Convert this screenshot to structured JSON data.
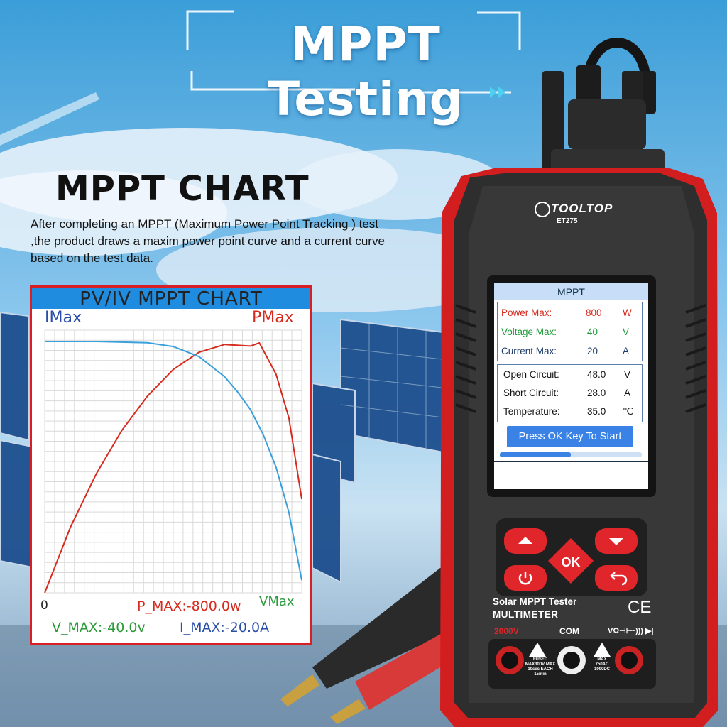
{
  "headline": "MPPT Testing",
  "section": {
    "title": "MPPT CHART",
    "description": "After completing an MPPT (Maximum Power Point Tracking ) test ,the product draws a maxim power point curve and a current curve based on the test data."
  },
  "chart_data": {
    "type": "line",
    "title": "PV/IV MPPT CHART",
    "y_label_left": "IMax",
    "y_label_right": "PMax",
    "x_label": "VMax",
    "origin_label": "0",
    "x_range": [
      0,
      40
    ],
    "series": [
      {
        "name": "",
        "color": "#d62b1e",
        "x": [
          0,
          4,
          8,
          12,
          16,
          20,
          24,
          28,
          32,
          33.4,
          36,
          38,
          40
        ],
        "y": [
          0,
          210,
          380,
          520,
          630,
          715,
          770,
          795,
          790,
          800,
          700,
          560,
          300
        ]
      },
      {
        "name": "",
        "color": "#3aa0dc",
        "x": [
          0,
          8,
          16,
          20,
          24,
          28,
          30,
          32,
          34,
          36,
          38,
          40
        ],
        "y": [
          20.0,
          20.0,
          19.9,
          19.6,
          18.8,
          17.2,
          16.0,
          14.6,
          12.6,
          10.0,
          6.4,
          1.0
        ]
      }
    ],
    "p_max": "P_MAX:-800.0w",
    "v_max": "V_MAX:-40.0v",
    "i_max": "I_MAX:-20.0A",
    "colors": {
      "border": "#d81f26",
      "header": "#1f8ce0",
      "power": "#d62b1e",
      "current": "#3aa0dc"
    }
  },
  "device": {
    "brand": "TOOLTOP",
    "model": "ET275",
    "label_line1": "Solar MPPT Tester",
    "label_line2": "MULTIMETER",
    "ce": "CE",
    "terminal_left": "2000V",
    "terminal_com": "COM",
    "terminal_right": "VΩ⊣⊢·))) ▶|",
    "warn_left": "FUSED MAX300V MAX 10sec EACH 15min",
    "warn_right": "MAX 750AC 1000DC",
    "keys": {
      "ok": "OK",
      "up": "up-icon",
      "down": "down-icon",
      "power": "power-icon",
      "back": "back-icon"
    },
    "screen": {
      "title": "MPPT",
      "power_max": {
        "label": "Power Max:",
        "value": "800",
        "unit": "W",
        "color": "#d62b1e"
      },
      "voltage_max": {
        "label": "Voltage Max:",
        "value": "40",
        "unit": "V",
        "color": "#1e9a3a"
      },
      "current_max": {
        "label": "Current Max:",
        "value": "20",
        "unit": "A",
        "color": "#1a3a66"
      },
      "open_circuit": {
        "label": "Open Circuit:",
        "value": "48.0",
        "unit": "V"
      },
      "short_circuit": {
        "label": "Short Circuit:",
        "value": "28.0",
        "unit": "A"
      },
      "temperature": {
        "label": "Temperature:",
        "value": "35.0",
        "unit": "℃"
      },
      "start_button": "Press OK Key To Start",
      "progress": 0.5
    }
  }
}
